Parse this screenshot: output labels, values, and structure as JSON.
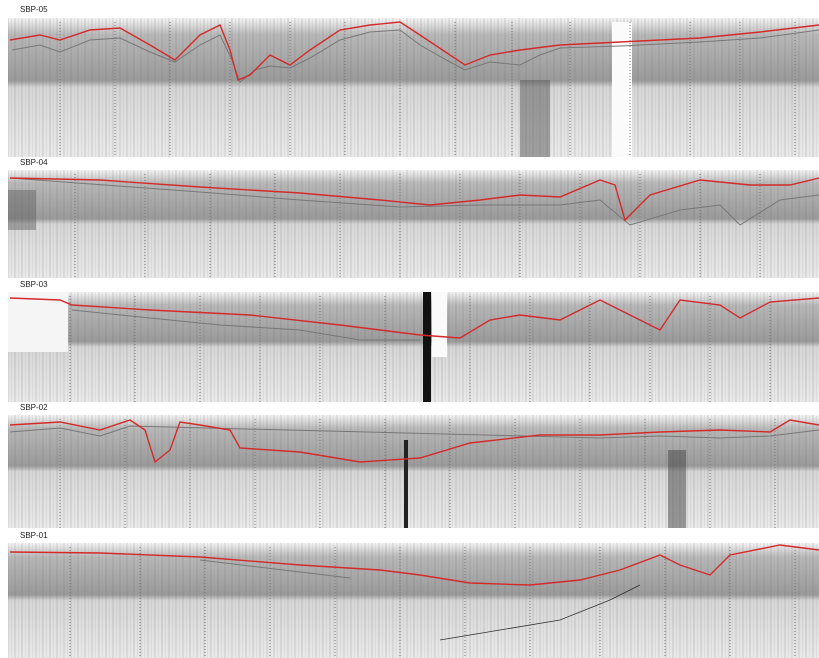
{
  "panels": [
    {
      "label": "SBP-05"
    },
    {
      "label": "SBP-04"
    },
    {
      "label": "SBP-03"
    },
    {
      "label": "SBP-02"
    },
    {
      "label": "SBP-01"
    }
  ]
}
